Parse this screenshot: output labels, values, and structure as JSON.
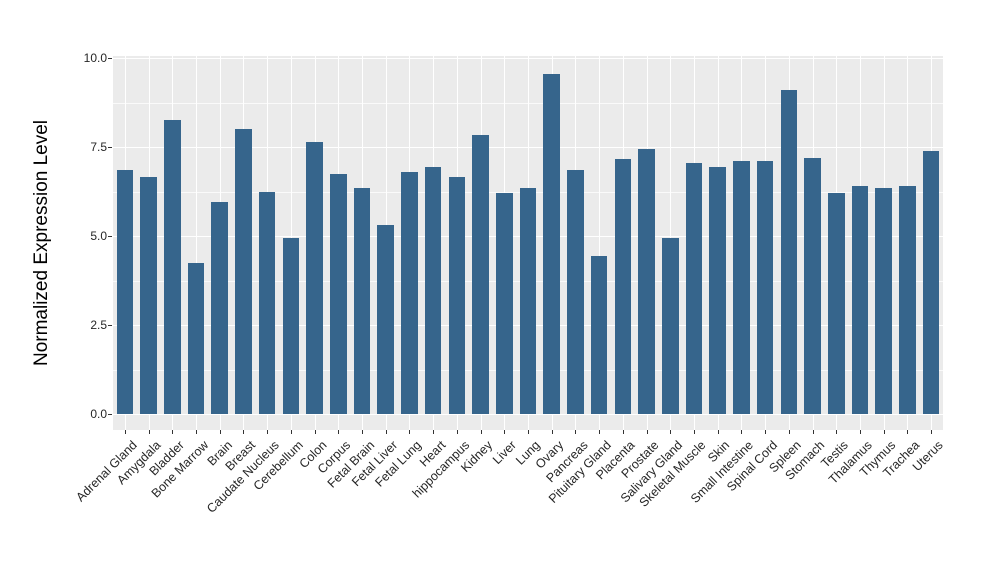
{
  "chart_data": {
    "type": "bar",
    "title": "",
    "ylabel": "Normalized Expression Level",
    "xlabel": "",
    "categories": [
      "Adrenal Gland",
      "Amygdala",
      "Bladder",
      "Bone Marrow",
      "Brain",
      "Breast",
      "Caudate Nucleus",
      "Cerebellum",
      "Colon",
      "Corpus",
      "Fetal Brain",
      "Fetal Liver",
      "Fetal Lung",
      "Heart",
      "hippocampus",
      "Kidney",
      "Liver",
      "Lung",
      "Ovary",
      "Pancreas",
      "Pituitary Gland",
      "Placenta",
      "Prostate",
      "Salivary Gland",
      "Skeletal Muscle",
      "Skin",
      "Small Intestine",
      "Spinal Cord",
      "Spleen",
      "Stomach",
      "Testis",
      "Thalamus",
      "Thymus",
      "Trachea",
      "Uterus"
    ],
    "values": [
      6.85,
      6.65,
      8.25,
      4.25,
      5.95,
      8.0,
      6.25,
      4.95,
      7.65,
      6.75,
      6.35,
      5.3,
      6.8,
      6.95,
      6.65,
      7.85,
      6.2,
      6.35,
      9.55,
      6.85,
      4.45,
      7.15,
      7.45,
      4.95,
      7.05,
      6.95,
      7.1,
      7.1,
      9.1,
      7.2,
      6.2,
      6.4,
      6.35,
      6.4,
      7.4
    ],
    "ylim": [
      0,
      10
    ],
    "yticks": [
      0,
      2.5,
      5,
      7.5,
      10
    ],
    "ytick_labels": [
      "0.0",
      "2.5",
      "5.0",
      "7.5",
      "10.0"
    ],
    "minor_yticks": [
      1.25,
      3.75,
      6.25,
      8.75
    ],
    "grid": "on",
    "legend": "none",
    "x_label_angle_deg": 45,
    "colors": {
      "bar": "#36658C",
      "panel_background": "#EBEBEB",
      "gridline": "#FFFFFF",
      "axis_text": "#262626",
      "axis_title": "#000000",
      "tick_mark": "#333333",
      "figure_background": "#FFFFFF"
    }
  }
}
